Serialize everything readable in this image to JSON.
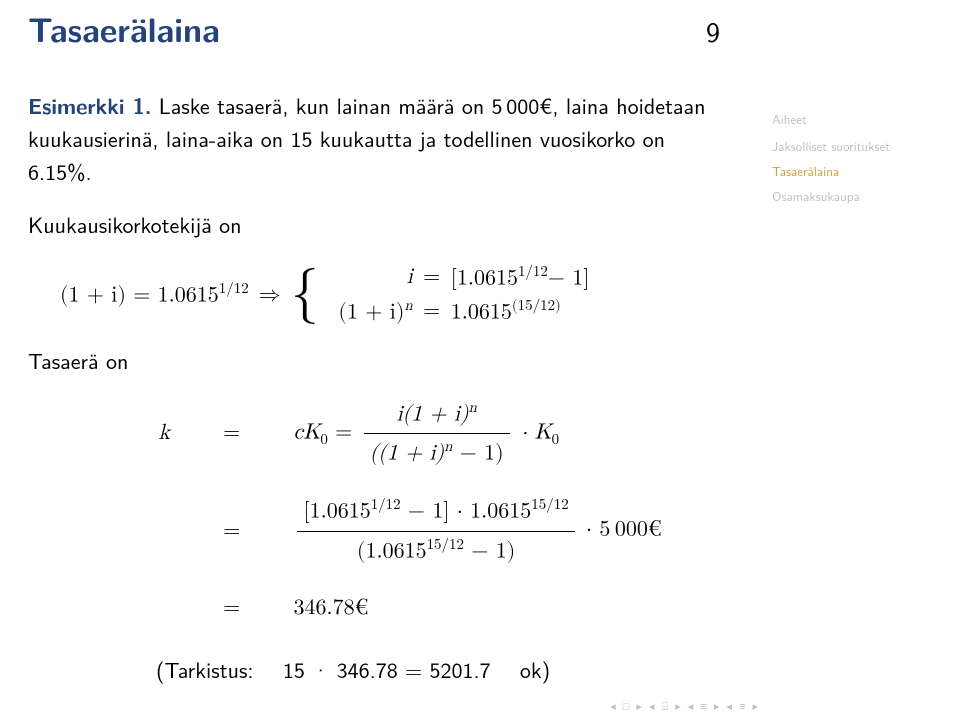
{
  "title": "Tasaerälaina",
  "frame_number": "9",
  "example_label": "Esimerkki 1.",
  "problem": "Laske tasaerä, kun lainan määrä on 5 000€, laina hoidetaan kuukausierinä, laina-aika on 15 kuukautta ja todellinen vuosikorko on 6.15%.",
  "monthly_label": "Kuukausikorkotekijä on",
  "eq1_lhs": "(1 + i) = 1.0615",
  "eq1_exp": "1/12",
  "eq1_arrow": "⇒",
  "case1_lhs": "i",
  "case1_eq": "=",
  "case1_rhs_a": "[1.0615",
  "case1_rhs_exp": "1/12",
  "case1_rhs_b": "− 1]",
  "case2_lhs": "(1 + i)",
  "case2_lhs_exp": "n",
  "case2_eq": "=",
  "case2_rhs_a": "1.0615",
  "case2_rhs_exp": "(15/12)",
  "payment_label": "Tasaerä on",
  "row1_l": "k",
  "row1_m": "=",
  "row1_r_pre": "cK",
  "row1_r_sub": "0",
  "row1_r_eq": " = ",
  "frac1_num_a": "i(1 + i)",
  "frac1_num_exp": "n",
  "frac1_den_a": "((1 + i)",
  "frac1_den_exp": "n",
  "frac1_den_b": " − 1)",
  "row1_r_post_a": " · K",
  "row1_r_post_sub": "0",
  "row2_m": "=",
  "frac2_num_a": "[1.0615",
  "frac2_num_exp1": "1/12",
  "frac2_num_b": " − 1] · 1.0615",
  "frac2_num_exp2": "15/12",
  "frac2_den_a": "(1.0615",
  "frac2_den_exp": "15/12",
  "frac2_den_b": " − 1)",
  "row2_r_post": " · 5 000€",
  "row3_m": "=",
  "row3_r": "346.78€",
  "check_text": "(Tarkistus:  15 · 346.78 = 5201.7  ok)",
  "sidebar": {
    "head": "Aiheet",
    "item1": "Jaksolliset suoritukset",
    "item2": "Tasaerälaina",
    "item3": "Osamaksukaupa"
  },
  "nav_glyphs": "◂ □ ▸  ◂ ⌸ ▸  ◂ ≡ ▸  ◂ ≡ ▸",
  "colors": {
    "title": "#24437a",
    "example": "#24437a",
    "text": "#000000",
    "sb_dim": "#b9c0cc",
    "sb_hi": "#c7a13a",
    "bg": "#ffffff"
  }
}
